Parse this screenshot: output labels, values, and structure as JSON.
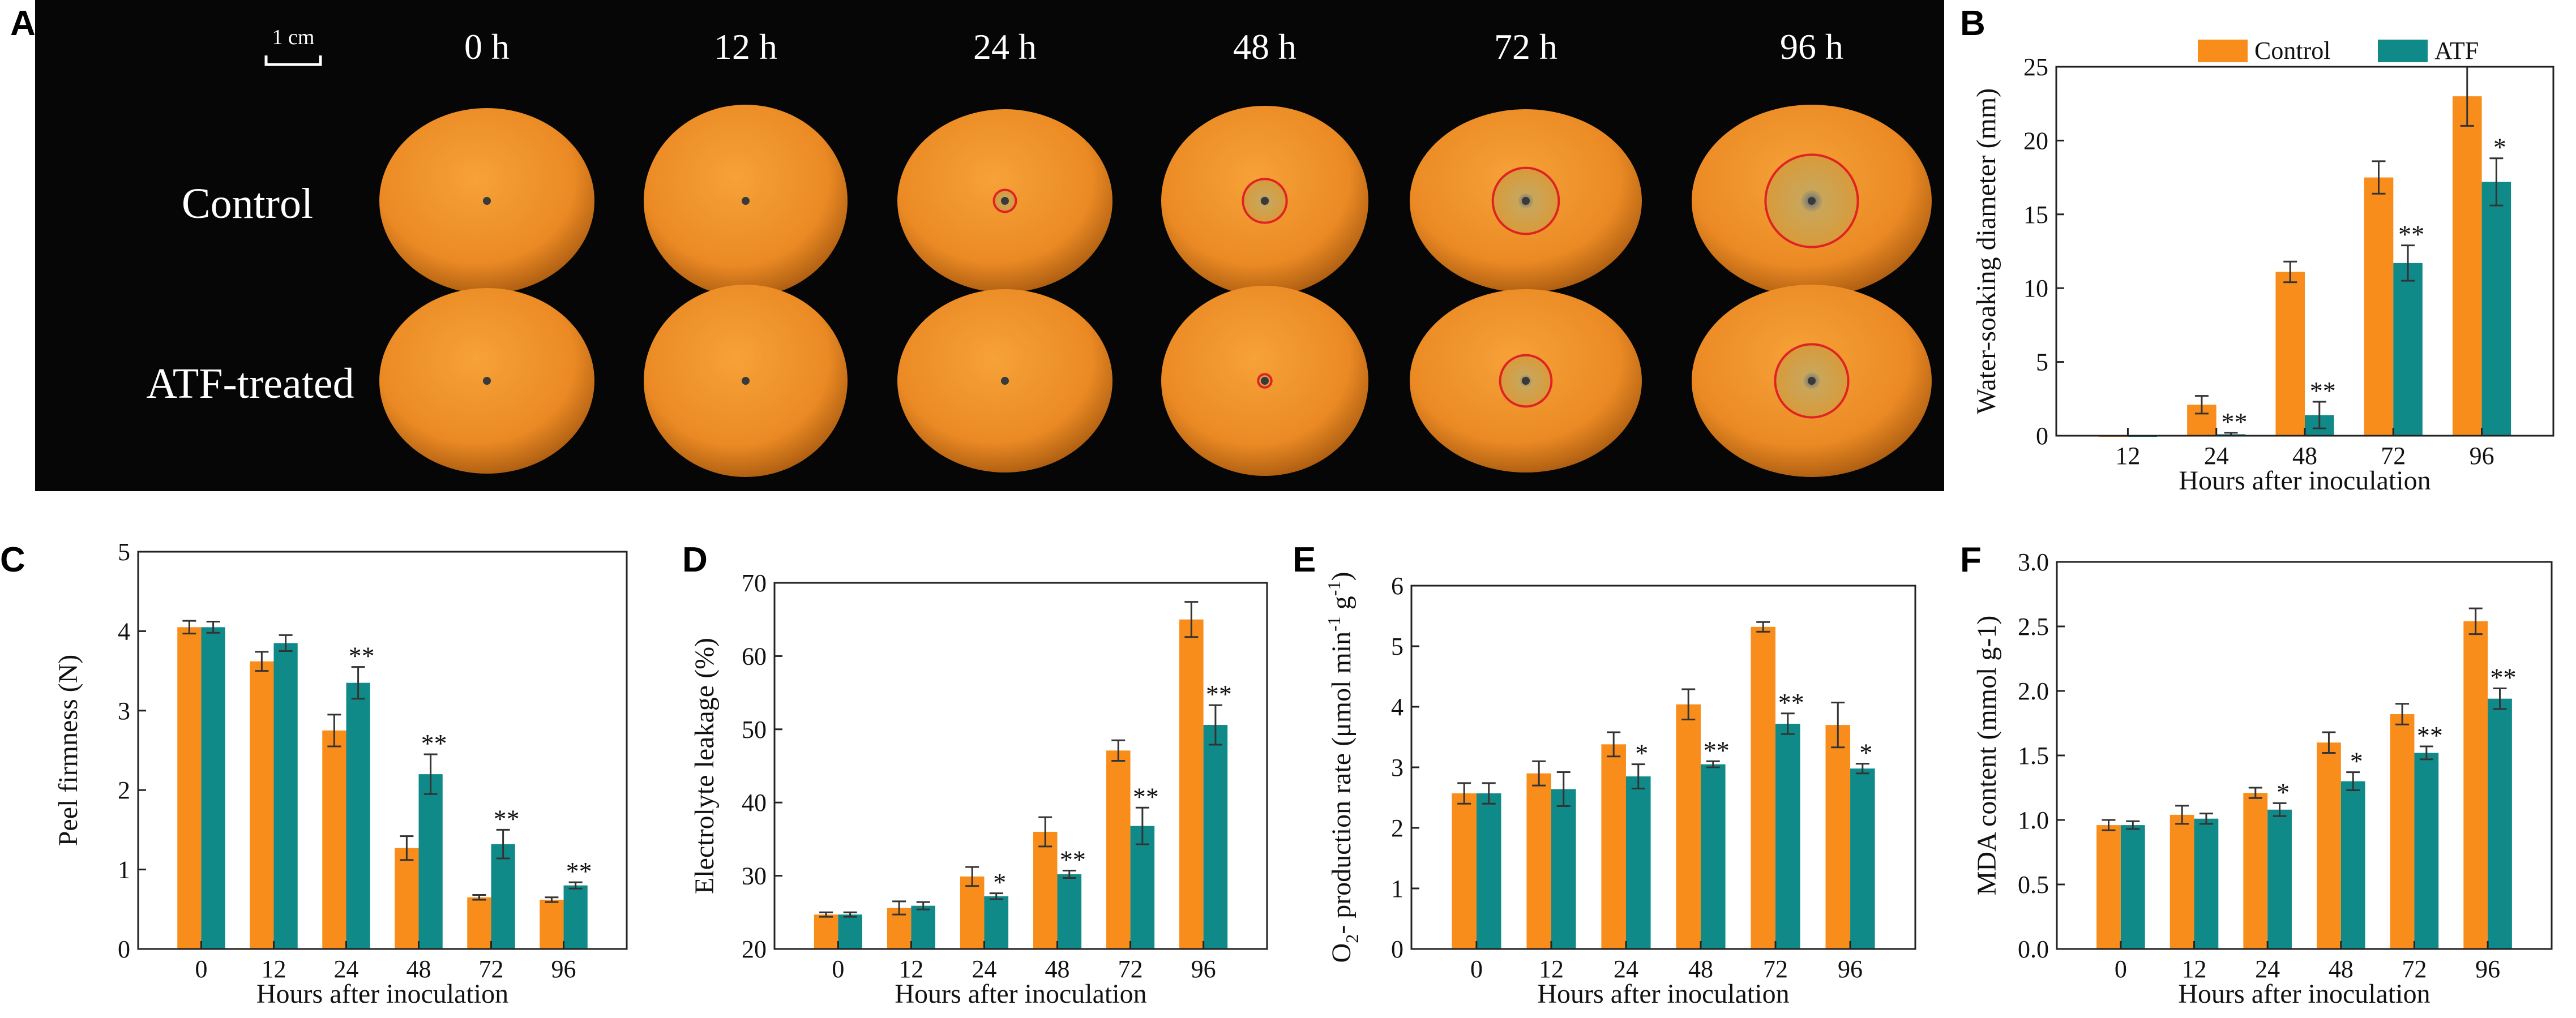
{
  "colors": {
    "control": "#F98D1B",
    "atf": "#108A89",
    "photo_bg": "#060606",
    "orange": "#EB8A24",
    "lesion_ring": "#E02222"
  },
  "panel_A": {
    "letter": "A",
    "scale_label": "1 cm",
    "time_labels": [
      "0 h",
      "12 h",
      "24 h",
      "48 h",
      "72 h",
      "96 h"
    ],
    "row_labels": [
      "Control",
      "ATF-treated"
    ],
    "lesion_fraction": {
      "control": [
        0,
        0,
        0.12,
        0.23,
        0.36,
        0.48
      ],
      "atf": [
        0,
        0,
        0,
        0.07,
        0.28,
        0.38
      ]
    }
  },
  "legend": {
    "control": "Control",
    "atf": "ATF"
  },
  "chart_data": [
    {
      "panel": "B",
      "type": "bar",
      "categories": [
        "12",
        "24",
        "48",
        "72",
        "96"
      ],
      "series": [
        {
          "name": "Control",
          "values": [
            0,
            2.1,
            11.1,
            17.5,
            23.0
          ],
          "errors": [
            0,
            0.6,
            0.7,
            1.1,
            2.0
          ],
          "sig": [
            "",
            "",
            "",
            "",
            ""
          ]
        },
        {
          "name": "ATF",
          "values": [
            0,
            0.1,
            1.4,
            11.7,
            17.2
          ],
          "errors": [
            0,
            0.1,
            0.9,
            1.2,
            1.6
          ],
          "sig": [
            "",
            "**",
            "**",
            "**",
            "*"
          ]
        }
      ],
      "ylim": [
        0,
        25
      ],
      "yticks": [
        0,
        5,
        10,
        15,
        20,
        25
      ],
      "ytick_labels": [
        "0",
        "5",
        "10",
        "15",
        "20",
        "25"
      ],
      "xlabel": "Hours after inoculation",
      "ylabel": "Water-soaking diameter (mm)"
    },
    {
      "panel": "C",
      "type": "bar",
      "categories": [
        "0",
        "12",
        "24",
        "48",
        "72",
        "96"
      ],
      "series": [
        {
          "name": "Control",
          "values": [
            4.05,
            3.62,
            2.75,
            1.27,
            0.65,
            0.62
          ],
          "errors": [
            0.08,
            0.12,
            0.2,
            0.15,
            0.03,
            0.03
          ],
          "sig": [
            "",
            "",
            "",
            "",
            "",
            ""
          ]
        },
        {
          "name": "ATF",
          "values": [
            4.05,
            3.85,
            3.35,
            2.2,
            1.32,
            0.8
          ],
          "errors": [
            0.07,
            0.1,
            0.2,
            0.25,
            0.18,
            0.04
          ],
          "sig": [
            "",
            "",
            "**",
            "**",
            "**",
            "**"
          ]
        }
      ],
      "ylim": [
        0,
        5
      ],
      "yticks": [
        0,
        1,
        2,
        3,
        4,
        5
      ],
      "ytick_labels": [
        "0",
        "1",
        "2",
        "3",
        "4",
        "5"
      ],
      "xlabel": "Hours after inoculation",
      "ylabel": "Peel firmness (N)"
    },
    {
      "panel": "D",
      "type": "bar",
      "categories": [
        "0",
        "12",
        "24",
        "48",
        "72",
        "96"
      ],
      "series": [
        {
          "name": "Control",
          "values": [
            24.7,
            25.6,
            29.9,
            36.0,
            47.1,
            65.0
          ],
          "errors": [
            0.3,
            0.9,
            1.3,
            2.0,
            1.4,
            2.4
          ],
          "sig": [
            "",
            "",
            "",
            "",
            "",
            ""
          ]
        },
        {
          "name": "ATF",
          "values": [
            24.7,
            25.9,
            27.2,
            30.2,
            36.8,
            50.6
          ],
          "errors": [
            0.3,
            0.5,
            0.4,
            0.5,
            2.5,
            2.7
          ],
          "sig": [
            "",
            "",
            "*",
            "**",
            "**",
            "**"
          ]
        }
      ],
      "ylim": [
        20,
        70
      ],
      "yticks": [
        20,
        30,
        40,
        50,
        60,
        70
      ],
      "ytick_labels": [
        "20",
        "30",
        "40",
        "50",
        "60",
        "70"
      ],
      "xlabel": "Hours after inoculation",
      "ylabel": "Electrolyte leakage (%)"
    },
    {
      "panel": "E",
      "type": "bar",
      "categories": [
        "0",
        "12",
        "24",
        "48",
        "72",
        "96"
      ],
      "series": [
        {
          "name": "Control",
          "values": [
            2.57,
            2.9,
            3.38,
            4.04,
            5.32,
            3.7
          ],
          "errors": [
            0.17,
            0.2,
            0.2,
            0.25,
            0.08,
            0.37
          ],
          "sig": [
            "",
            "",
            "",
            "",
            "",
            ""
          ]
        },
        {
          "name": "ATF",
          "values": [
            2.57,
            2.64,
            2.85,
            3.05,
            3.72,
            2.98
          ],
          "errors": [
            0.17,
            0.28,
            0.2,
            0.05,
            0.17,
            0.08
          ],
          "sig": [
            "",
            "",
            "*",
            "**",
            "**",
            "*"
          ]
        }
      ],
      "ylim": [
        0,
        6
      ],
      "yticks": [
        0,
        1,
        2,
        3,
        4,
        5,
        6
      ],
      "ytick_labels": [
        "0",
        "1",
        "2",
        "3",
        "4",
        "5",
        "6"
      ],
      "xlabel": "Hours after inoculation",
      "ylabel": {
        "o": "O",
        "o_sub": "2",
        "rest": "- production rate (μmol min",
        "min_exp": "-1",
        "g": " g",
        "g_exp": "-1",
        "close": ")"
      }
    },
    {
      "panel": "F",
      "type": "bar",
      "categories": [
        "0",
        "12",
        "24",
        "48",
        "72",
        "96"
      ],
      "series": [
        {
          "name": "Control",
          "values": [
            0.96,
            1.04,
            1.21,
            1.6,
            1.82,
            2.54
          ],
          "errors": [
            0.04,
            0.07,
            0.04,
            0.08,
            0.08,
            0.1
          ],
          "sig": [
            "",
            "",
            "",
            "",
            "",
            ""
          ]
        },
        {
          "name": "ATF",
          "values": [
            0.96,
            1.01,
            1.08,
            1.3,
            1.52,
            1.94
          ],
          "errors": [
            0.03,
            0.04,
            0.05,
            0.07,
            0.05,
            0.08
          ],
          "sig": [
            "",
            "",
            "*",
            "*",
            "**",
            "**"
          ]
        }
      ],
      "ylim": [
        0,
        3.0
      ],
      "yticks": [
        0,
        0.5,
        1.0,
        1.5,
        2.0,
        2.5,
        3.0
      ],
      "ytick_labels": [
        "0.0",
        "0.5",
        "1.0",
        "1.5",
        "2.0",
        "2.5",
        "3.0"
      ],
      "xlabel": "Hours after inoculation",
      "ylabel": "MDA content (mmol g-1)"
    }
  ]
}
